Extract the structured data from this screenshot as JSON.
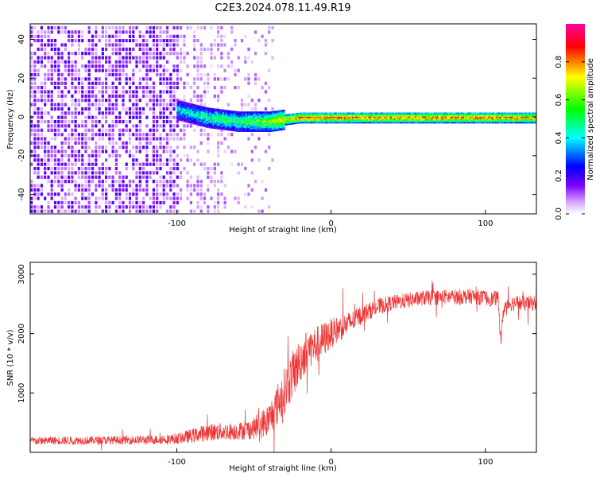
{
  "figure_title": "C2E3.2024.078.11.49.R19",
  "chart_data": [
    {
      "type": "heatmap",
      "title": "",
      "xlabel": "Height of straight line (km)",
      "ylabel": "Frequency (Hz)",
      "xlim": [
        -195,
        133
      ],
      "ylim": [
        -50,
        48
      ],
      "xticks": [
        -100,
        0,
        100
      ],
      "xtick_labels": [
        "-100",
        "0",
        "100"
      ],
      "yticks": [
        -40,
        -20,
        0,
        20,
        40
      ],
      "ytick_labels": [
        "-40",
        "-20",
        "0",
        "20",
        "40"
      ],
      "colorbar": {
        "label": "Normalized spectral amplitude",
        "range": [
          0,
          1
        ],
        "ticks": [
          0,
          0.2,
          0.4,
          0.6,
          0.8
        ],
        "tick_labels": [
          "0.0",
          "0.2",
          "0.4",
          "0.6",
          "0.8"
        ],
        "colors": [
          "#ffffff",
          "#d8a8ff",
          "#7a00ff",
          "#0000ff",
          "#00ffff",
          "#00ff00",
          "#ffff00",
          "#ff0000",
          "#ff00a0"
        ]
      },
      "features": {
        "noise_region_x": [
          -195,
          -40
        ],
        "signal_line": {
          "x": [
            -100,
            -90,
            -80,
            -70,
            -60,
            -50,
            -40,
            -30,
            -20,
            -10,
            0,
            50,
            100,
            133
          ],
          "frequency": [
            4,
            2,
            0,
            -1,
            -2,
            -2,
            -2,
            -1,
            0,
            0,
            0,
            0,
            0,
            0
          ],
          "peak_amplitude": [
            0.45,
            0.5,
            0.55,
            0.6,
            0.6,
            0.65,
            0.7,
            0.8,
            0.9,
            0.9,
            0.9,
            0.88,
            0.9,
            0.85
          ]
        }
      }
    },
    {
      "type": "line",
      "title": "",
      "xlabel": "Height of straight line (km)",
      "ylabel": "SNR (10 * v/v)",
      "xlim": [
        -195,
        133
      ],
      "ylim": [
        0,
        3200
      ],
      "xticks": [
        -100,
        0,
        100
      ],
      "xtick_labels": [
        "-100",
        "0",
        "100"
      ],
      "yticks": [
        1000,
        2000,
        3000
      ],
      "ytick_labels": [
        "1000",
        "2000",
        "3000"
      ],
      "series": [
        {
          "color": "#ee3333",
          "x": [
            -195,
            -180,
            -160,
            -140,
            -120,
            -100,
            -90,
            -80,
            -70,
            -60,
            -50,
            -40,
            -35,
            -30,
            -25,
            -20,
            -15,
            -10,
            -5,
            0,
            5,
            10,
            15,
            20,
            30,
            40,
            50,
            60,
            70,
            80,
            90,
            100,
            105,
            108,
            110,
            112,
            115,
            120,
            125,
            133
          ],
          "values": [
            190,
            200,
            200,
            205,
            210,
            230,
            280,
            340,
            350,
            360,
            400,
            550,
            800,
            1050,
            1300,
            1550,
            1750,
            1800,
            1900,
            2000,
            2080,
            2150,
            2230,
            2320,
            2450,
            2520,
            2560,
            2600,
            2610,
            2620,
            2630,
            2600,
            2580,
            2620,
            1900,
            2450,
            2500,
            2520,
            2500,
            2520
          ],
          "noise_amplitude": [
            70,
            70,
            70,
            70,
            75,
            90,
            120,
            150,
            150,
            150,
            180,
            300,
            350,
            400,
            400,
            380,
            350,
            320,
            300,
            250,
            220,
            200,
            180,
            160,
            140,
            130,
            130,
            130,
            130,
            130,
            130,
            130,
            130,
            130,
            130,
            130,
            130,
            130,
            130,
            130
          ]
        }
      ]
    }
  ]
}
